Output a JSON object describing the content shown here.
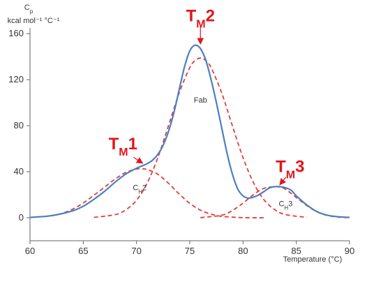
{
  "chart_data": {
    "type": "line",
    "title": "",
    "ylabel_symbol": "C",
    "ylabel_symbol_sub": "p",
    "ylabel_units": "kcal mol⁻¹ °C⁻¹",
    "xlabel": "Temperature (°C)",
    "xlim": [
      60,
      90
    ],
    "ylim": [
      -20,
      165
    ],
    "xticks": [
      60,
      65,
      70,
      75,
      80,
      85,
      90
    ],
    "yticks": [
      0,
      40,
      80,
      120,
      160
    ],
    "grid": false,
    "colors": {
      "total": "#4a7fc1",
      "component": "#e03c3c",
      "peak_label": "#e0161c",
      "axis": "#666666"
    },
    "series": [
      {
        "style": "solid",
        "x": [
          60,
          62,
          64,
          65,
          66,
          67,
          68,
          69,
          70,
          70.5,
          71,
          71.5,
          72,
          72.5,
          73,
          73.5,
          74,
          74.5,
          75,
          75.5,
          76,
          76.5,
          77,
          77.5,
          78,
          78.5,
          79,
          79.5,
          80,
          80.5,
          81,
          81.5,
          82,
          82.5,
          83,
          83.5,
          84,
          84.5,
          85,
          86,
          87,
          88,
          89,
          90
        ],
        "y": [
          0.3,
          1.8,
          6,
          10,
          16,
          23,
          31,
          38,
          43,
          45,
          47,
          50,
          55,
          63,
          75,
          91,
          111,
          131,
          145,
          150,
          147,
          137,
          120,
          100,
          78,
          56,
          38,
          25,
          19,
          17,
          18,
          20,
          23,
          26,
          27,
          27,
          26,
          24,
          19,
          11,
          5,
          2,
          0.8,
          0.3
        ]
      },
      {
        "name": "C_H2",
        "style": "dashed",
        "x": [
          60,
          62,
          63,
          64,
          65,
          66,
          67,
          68,
          69,
          70,
          70.5,
          71,
          72,
          73,
          74,
          75,
          76,
          77,
          78,
          80,
          82
        ],
        "y": [
          0.2,
          1.7,
          3.8,
          7.4,
          12.8,
          19.5,
          26.6,
          33.7,
          39.4,
          42.3,
          42.5,
          41.9,
          37.8,
          29.9,
          20.7,
          12.5,
          6.6,
          3.1,
          1.2,
          0.1,
          0.0
        ]
      },
      {
        "name": "Fab",
        "style": "dashed",
        "x": [
          66,
          68,
          69,
          70,
          71,
          72,
          73,
          74,
          75,
          75.5,
          76,
          76.5,
          77,
          78,
          79,
          80,
          81,
          82,
          83,
          84,
          86
        ],
        "y": [
          0.3,
          2.7,
          6.9,
          15.2,
          30.1,
          52.2,
          79.9,
          108.4,
          130.5,
          136.6,
          138.8,
          136.6,
          130.5,
          108.4,
          79.9,
          52.2,
          30.1,
          15.2,
          6.9,
          2.7,
          0.3
        ]
      },
      {
        "name": "C_H3",
        "style": "dashed",
        "x": [
          76,
          78,
          79,
          80,
          81,
          82,
          83,
          83.5,
          84,
          85,
          86,
          87,
          88,
          89,
          90
        ],
        "y": [
          0.1,
          2.2,
          6.3,
          12.7,
          20.2,
          25.7,
          26.9,
          26.5,
          24.7,
          17.6,
          10.5,
          4.9,
          1.8,
          0.5,
          0.1
        ]
      }
    ],
    "annotations": [
      {
        "main": "T",
        "sub": "M",
        "suffix": "1",
        "target": [
          70.5,
          46
        ]
      },
      {
        "main": "T",
        "sub": "M",
        "suffix": "2",
        "target": [
          76,
          150
        ]
      },
      {
        "main": "T",
        "sub": "M",
        "suffix": "3",
        "target": [
          83.5,
          27.5
        ]
      }
    ],
    "component_labels": [
      {
        "main": "Fab",
        "sub": "",
        "suffix": "",
        "at": [
          76,
          100
        ]
      },
      {
        "main": "C",
        "sub": "H",
        "suffix": "2",
        "at": [
          70.3,
          24
        ]
      },
      {
        "main": "C",
        "sub": "H",
        "suffix": "3",
        "at": [
          84,
          10
        ]
      }
    ]
  }
}
